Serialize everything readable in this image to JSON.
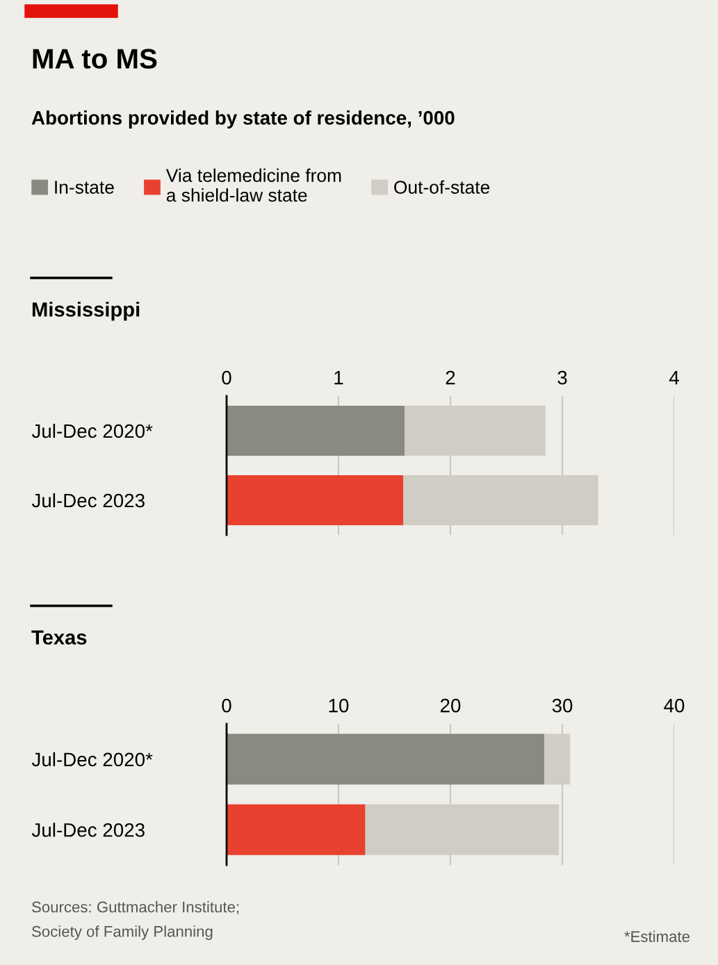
{
  "chart_data": [
    {
      "type": "other",
      "title": "MA to MS",
      "subtitle": "Abortions provided by state of residence, ’000",
      "annotations": [
        "Sources: Guttmacher Institute;\nSociety of Family Planning",
        "*Estimate"
      ]
    },
    {
      "type": "bar",
      "orientation": "horizontal",
      "stacked": true,
      "title": "Mississippi",
      "categories": [
        "Jul-Dec 2020*",
        "Jul-Dec 2023"
      ],
      "series": [
        {
          "name": "In-state",
          "color": "#8a8a80",
          "values": [
            1.59,
            null
          ]
        },
        {
          "name": "Via telemedicine from\na shield-law state",
          "color": "#e8412f",
          "values": [
            null,
            1.58
          ]
        },
        {
          "name": "Out-of-state",
          "color": "#cfcdc4",
          "values": [
            1.26,
            1.74
          ]
        }
      ],
      "xlim": [
        0,
        4
      ],
      "xticks": [
        0,
        1,
        2,
        3,
        4
      ],
      "grid": "x",
      "legend": "top"
    },
    {
      "type": "bar",
      "orientation": "horizontal",
      "stacked": true,
      "title": "Texas",
      "categories": [
        "Jul-Dec 2020*",
        "Jul-Dec 2023"
      ],
      "series": [
        {
          "color": "#8a8a80",
          "values": [
            28.4,
            null
          ]
        },
        {
          "color": "#e8412f",
          "values": [
            null,
            12.4
          ]
        },
        {
          "color": "#cfcdc4",
          "values": [
            2.3,
            17.3
          ]
        }
      ],
      "xlim": [
        0,
        40
      ],
      "xticks": [
        0,
        10,
        20,
        30,
        40
      ],
      "grid": "x"
    }
  ]
}
